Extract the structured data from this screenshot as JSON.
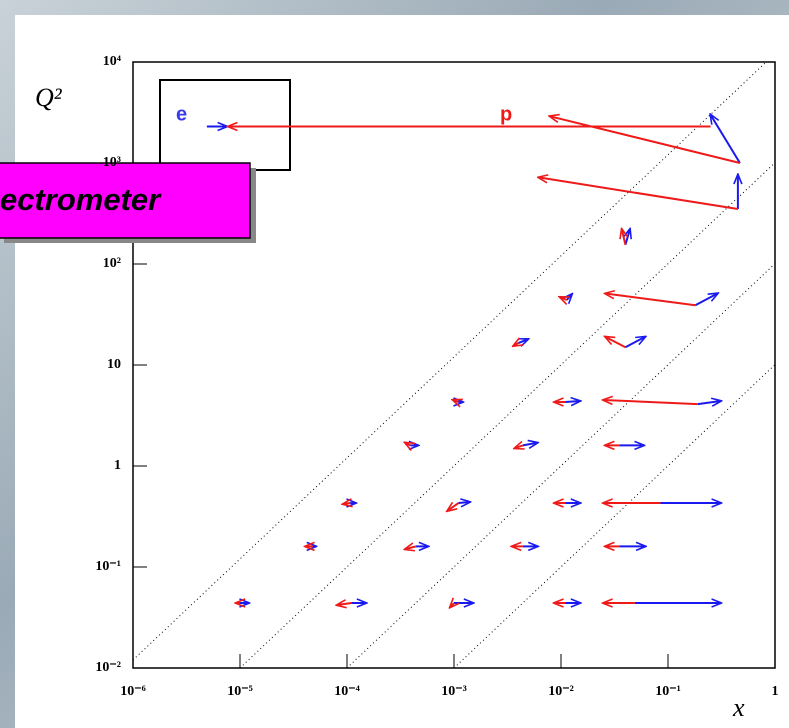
{
  "chart_data": {
    "type": "arrows",
    "annotations": [
      "e",
      "p"
    ],
    "banner": "ectrometer",
    "x_label": "x",
    "y_label": "Q²",
    "log_x": true,
    "log_y": true,
    "xlim": [
      1e-06,
      1
    ],
    "ylim": [
      0.01,
      10000
    ],
    "xticks": [
      {
        "value": 1e-06,
        "label": "10⁻⁶"
      },
      {
        "value": 1e-05,
        "label": "10⁻⁵"
      },
      {
        "value": 0.0001,
        "label": "10⁻⁴"
      },
      {
        "value": 0.001,
        "label": "10⁻³"
      },
      {
        "value": 0.01,
        "label": "10⁻²"
      },
      {
        "value": 0.1,
        "label": "10⁻¹"
      },
      1
    ],
    "yticks": [
      {
        "value": 0.01,
        "label": "10⁻²"
      },
      {
        "value": 0.1,
        "label": "10⁻¹"
      },
      1,
      10,
      {
        "value": 100,
        "label": "10²"
      },
      {
        "value": 1000,
        "label": "10³"
      },
      {
        "value": 10000,
        "label": "10⁴"
      }
    ],
    "x": [
      1e-05,
      0.00011,
      0.001,
      0.011,
      0.049,
      4.8e-05,
      0.00044,
      0.0044,
      0.035,
      0.000107,
      0.0011,
      0.011,
      0.085,
      0.00039,
      0.0044,
      0.035,
      0.0011,
      0.011,
      0.19,
      0.004,
      0.04,
      0.0113,
      0.18,
      0.04,
      0.47,
      0.45,
      0.25,
      4.9e-06
    ],
    "y": [
      0.044,
      0.044,
      0.044,
      0.044,
      0.044,
      0.16,
      0.16,
      0.16,
      0.16,
      0.43,
      0.43,
      0.43,
      0.43,
      1.6,
      1.6,
      1.6,
      4.3,
      4.3,
      4.1,
      16.5,
      15,
      44,
      39,
      155,
      1000,
      350,
      2300,
      2300
    ],
    "series": [
      {
        "name": "e",
        "color": "#1a1aee",
        "x_end": [
          1.2e-05,
          0.00015,
          0.0015,
          0.015,
          0.31,
          5.1e-05,
          0.00057,
          0.006,
          0.061,
          0.00012,
          0.0014,
          0.015,
          0.31,
          0.00046,
          0.006,
          0.059,
          0.0012,
          0.015,
          0.31,
          0.0049,
          0.061,
          0.0126,
          0.29,
          0.044,
          0.25,
          0.45,
          null,
          7.5e-06
        ],
        "y_end": [
          0.044,
          0.044,
          0.044,
          0.044,
          0.044,
          0.16,
          0.16,
          0.16,
          0.16,
          0.43,
          0.44,
          0.43,
          0.43,
          1.6,
          1.7,
          1.6,
          4.3,
          4.4,
          4.4,
          18,
          19,
          50,
          51,
          220,
          3000,
          760,
          null,
          2300
        ]
      },
      {
        "name": "p",
        "color": "#ee1a1a",
        "x_end": [
          9.2e-06,
          8.1e-05,
          0.00092,
          0.0087,
          0.025,
          4.1e-05,
          0.00035,
          0.0035,
          0.026,
          9.2e-05,
          0.00087,
          0.0087,
          0.025,
          0.00035,
          0.0037,
          0.026,
          0.00098,
          0.0087,
          0.025,
          0.0036,
          0.026,
          0.0098,
          0.026,
          0.037,
          0.0079,
          0.0062,
          7.8e-06,
          null
        ],
        "y_end": [
          0.044,
          0.042,
          0.04,
          0.044,
          0.044,
          0.16,
          0.15,
          0.16,
          0.16,
          0.42,
          0.36,
          0.43,
          0.43,
          1.7,
          1.5,
          1.6,
          4.5,
          4.3,
          4.5,
          15.5,
          19,
          47,
          51,
          220,
          2900,
          720,
          2300,
          null
        ]
      }
    ]
  }
}
